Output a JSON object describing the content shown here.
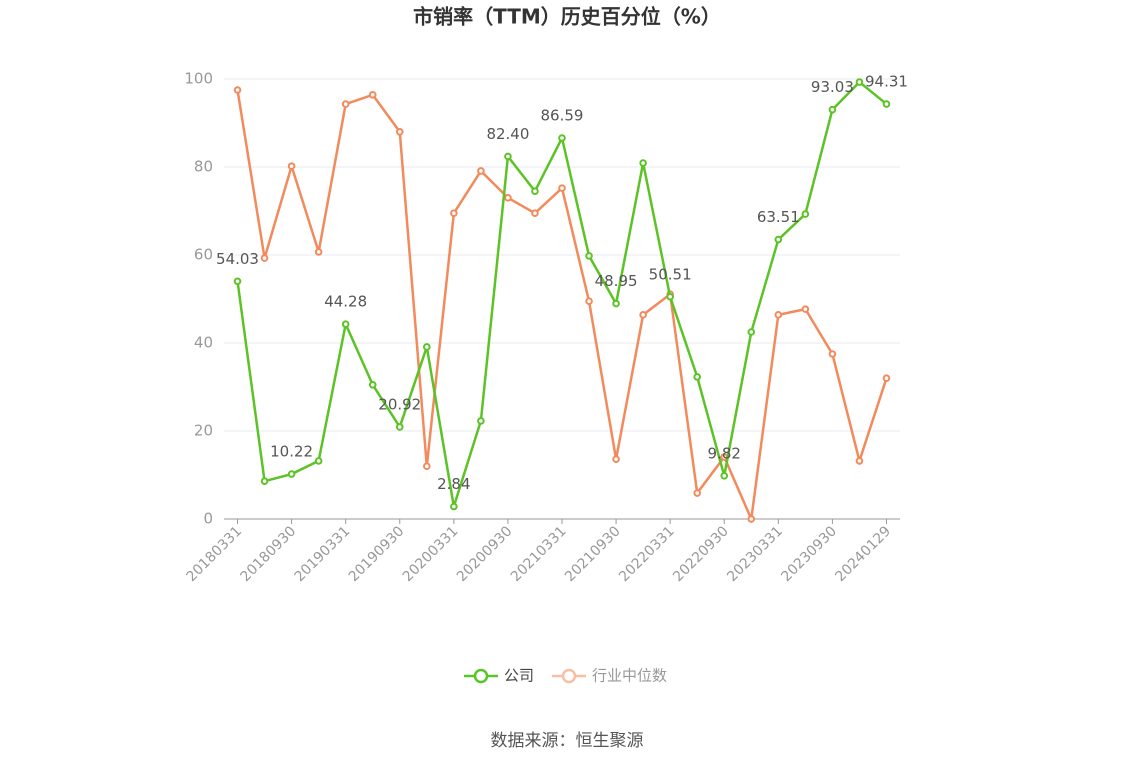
{
  "chart_data": {
    "type": "line",
    "title": "市销率（TTM）历史百分位（%）",
    "categories": [
      "20180331",
      null,
      "20180930",
      null,
      "20190331",
      null,
      "20190930",
      null,
      "20200331",
      null,
      "20200930",
      null,
      "20210331",
      null,
      "20210930",
      null,
      "20220331",
      null,
      "20220930",
      null,
      "20230331",
      null,
      "20230930",
      null,
      "20240129"
    ],
    "series": [
      {
        "name": "公司",
        "color": "#5cc326",
        "values": [
          54.03,
          8.6,
          10.22,
          13.2,
          44.28,
          30.5,
          20.92,
          39.1,
          2.84,
          22.3,
          82.4,
          74.5,
          86.59,
          59.8,
          48.95,
          80.9,
          50.51,
          32.3,
          9.82,
          42.5,
          63.51,
          69.3,
          93.03,
          99.3,
          94.31
        ],
        "value_labels": [
          "54.03",
          null,
          "10.22",
          null,
          "44.28",
          null,
          "20.92",
          null,
          "2.84",
          null,
          "82.40",
          null,
          "86.59",
          null,
          "48.95",
          null,
          "50.51",
          null,
          "9.82",
          null,
          "63.51",
          null,
          "93.03",
          null,
          "94.31"
        ]
      },
      {
        "name": "行业中位数",
        "color": "#f28a5c",
        "values": [
          97.5,
          59.3,
          80.2,
          60.7,
          94.3,
          96.4,
          88.0,
          12.0,
          69.5,
          79.1,
          73.0,
          69.5,
          75.2,
          49.5,
          13.6,
          46.4,
          51.1,
          5.9,
          14.1,
          0,
          46.4,
          47.7,
          37.5,
          13.2,
          32.0
        ]
      }
    ],
    "ylim": [
      0,
      100
    ],
    "yticks": [
      0,
      20,
      40,
      60,
      80,
      100
    ],
    "grid": true,
    "source": "数据来源：恒生聚源"
  }
}
